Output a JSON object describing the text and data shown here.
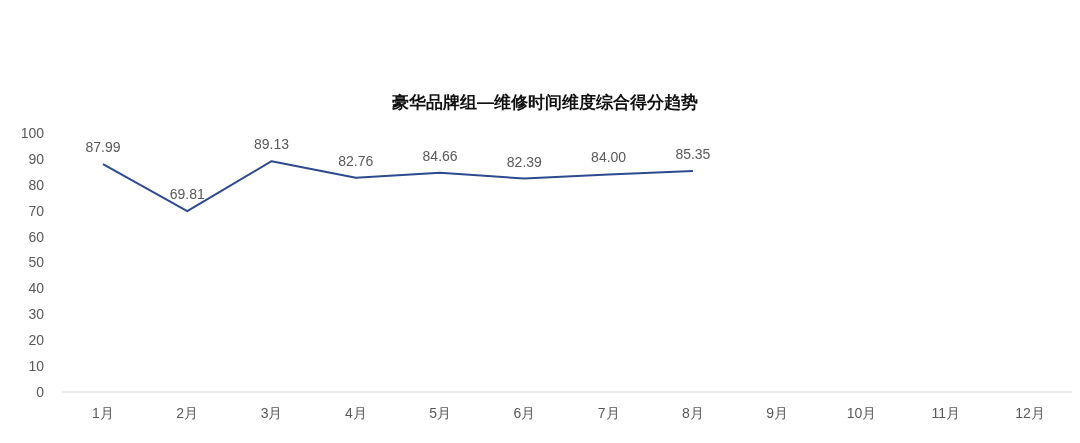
{
  "chart_data": {
    "type": "line",
    "title": "豪华品牌组—维修时间维度综合得分趋势",
    "categories": [
      "1月",
      "2月",
      "3月",
      "4月",
      "5月",
      "6月",
      "7月",
      "8月",
      "9月",
      "10月",
      "11月",
      "12月"
    ],
    "series": [
      {
        "color": "#2e4a8e",
        "values": [
          87.99,
          69.81,
          89.13,
          82.76,
          84.66,
          82.39,
          84.0,
          85.35,
          null,
          null,
          null,
          null
        ],
        "value_labels": [
          "87.99",
          "69.81",
          "89.13",
          "82.76",
          "84.66",
          "82.39",
          "84.00",
          "85.35",
          null,
          null,
          null,
          null
        ]
      }
    ],
    "ylim": [
      0,
      100
    ],
    "yticks": [
      0,
      10,
      20,
      30,
      40,
      50,
      60,
      70,
      80,
      90,
      100
    ],
    "grid": false,
    "marker": "none",
    "line_style": "solid"
  }
}
